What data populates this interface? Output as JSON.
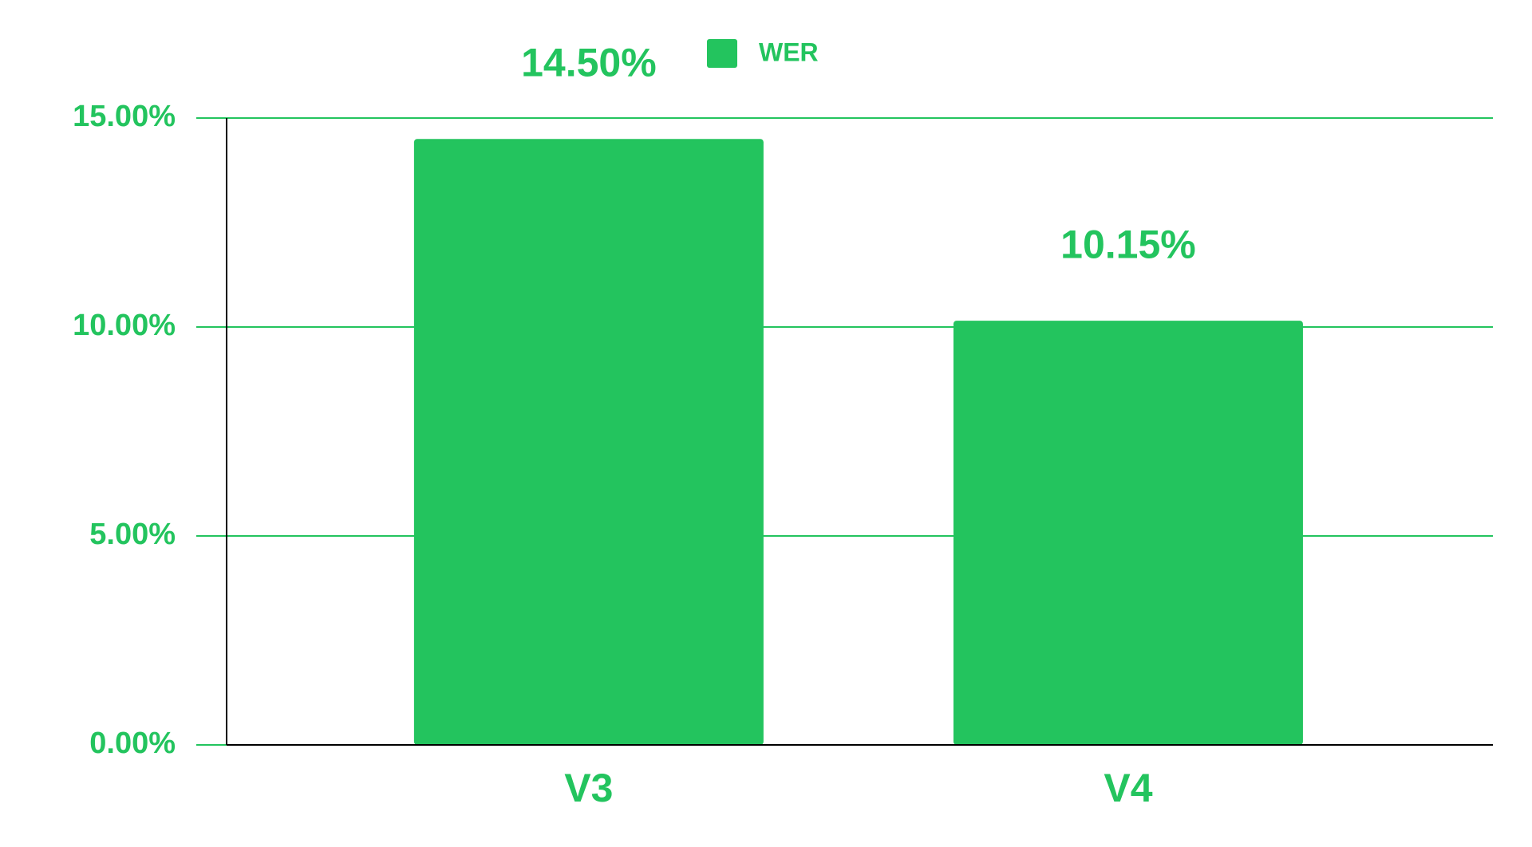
{
  "chart_data": {
    "type": "bar",
    "categories": [
      "V3",
      "V4"
    ],
    "series": [
      {
        "name": "WER",
        "color": "#23c45e",
        "values": [
          14.5,
          10.15
        ],
        "value_labels": [
          "14.50%",
          "10.15%"
        ]
      }
    ],
    "ylim": [
      0,
      15
    ],
    "yticks": [
      {
        "value": 0,
        "label": "0.00%"
      },
      {
        "value": 5,
        "label": "5.00%"
      },
      {
        "value": 10,
        "label": "10.00%"
      },
      {
        "value": 15,
        "label": "15.00%"
      }
    ],
    "grid": true,
    "legend": "top"
  }
}
